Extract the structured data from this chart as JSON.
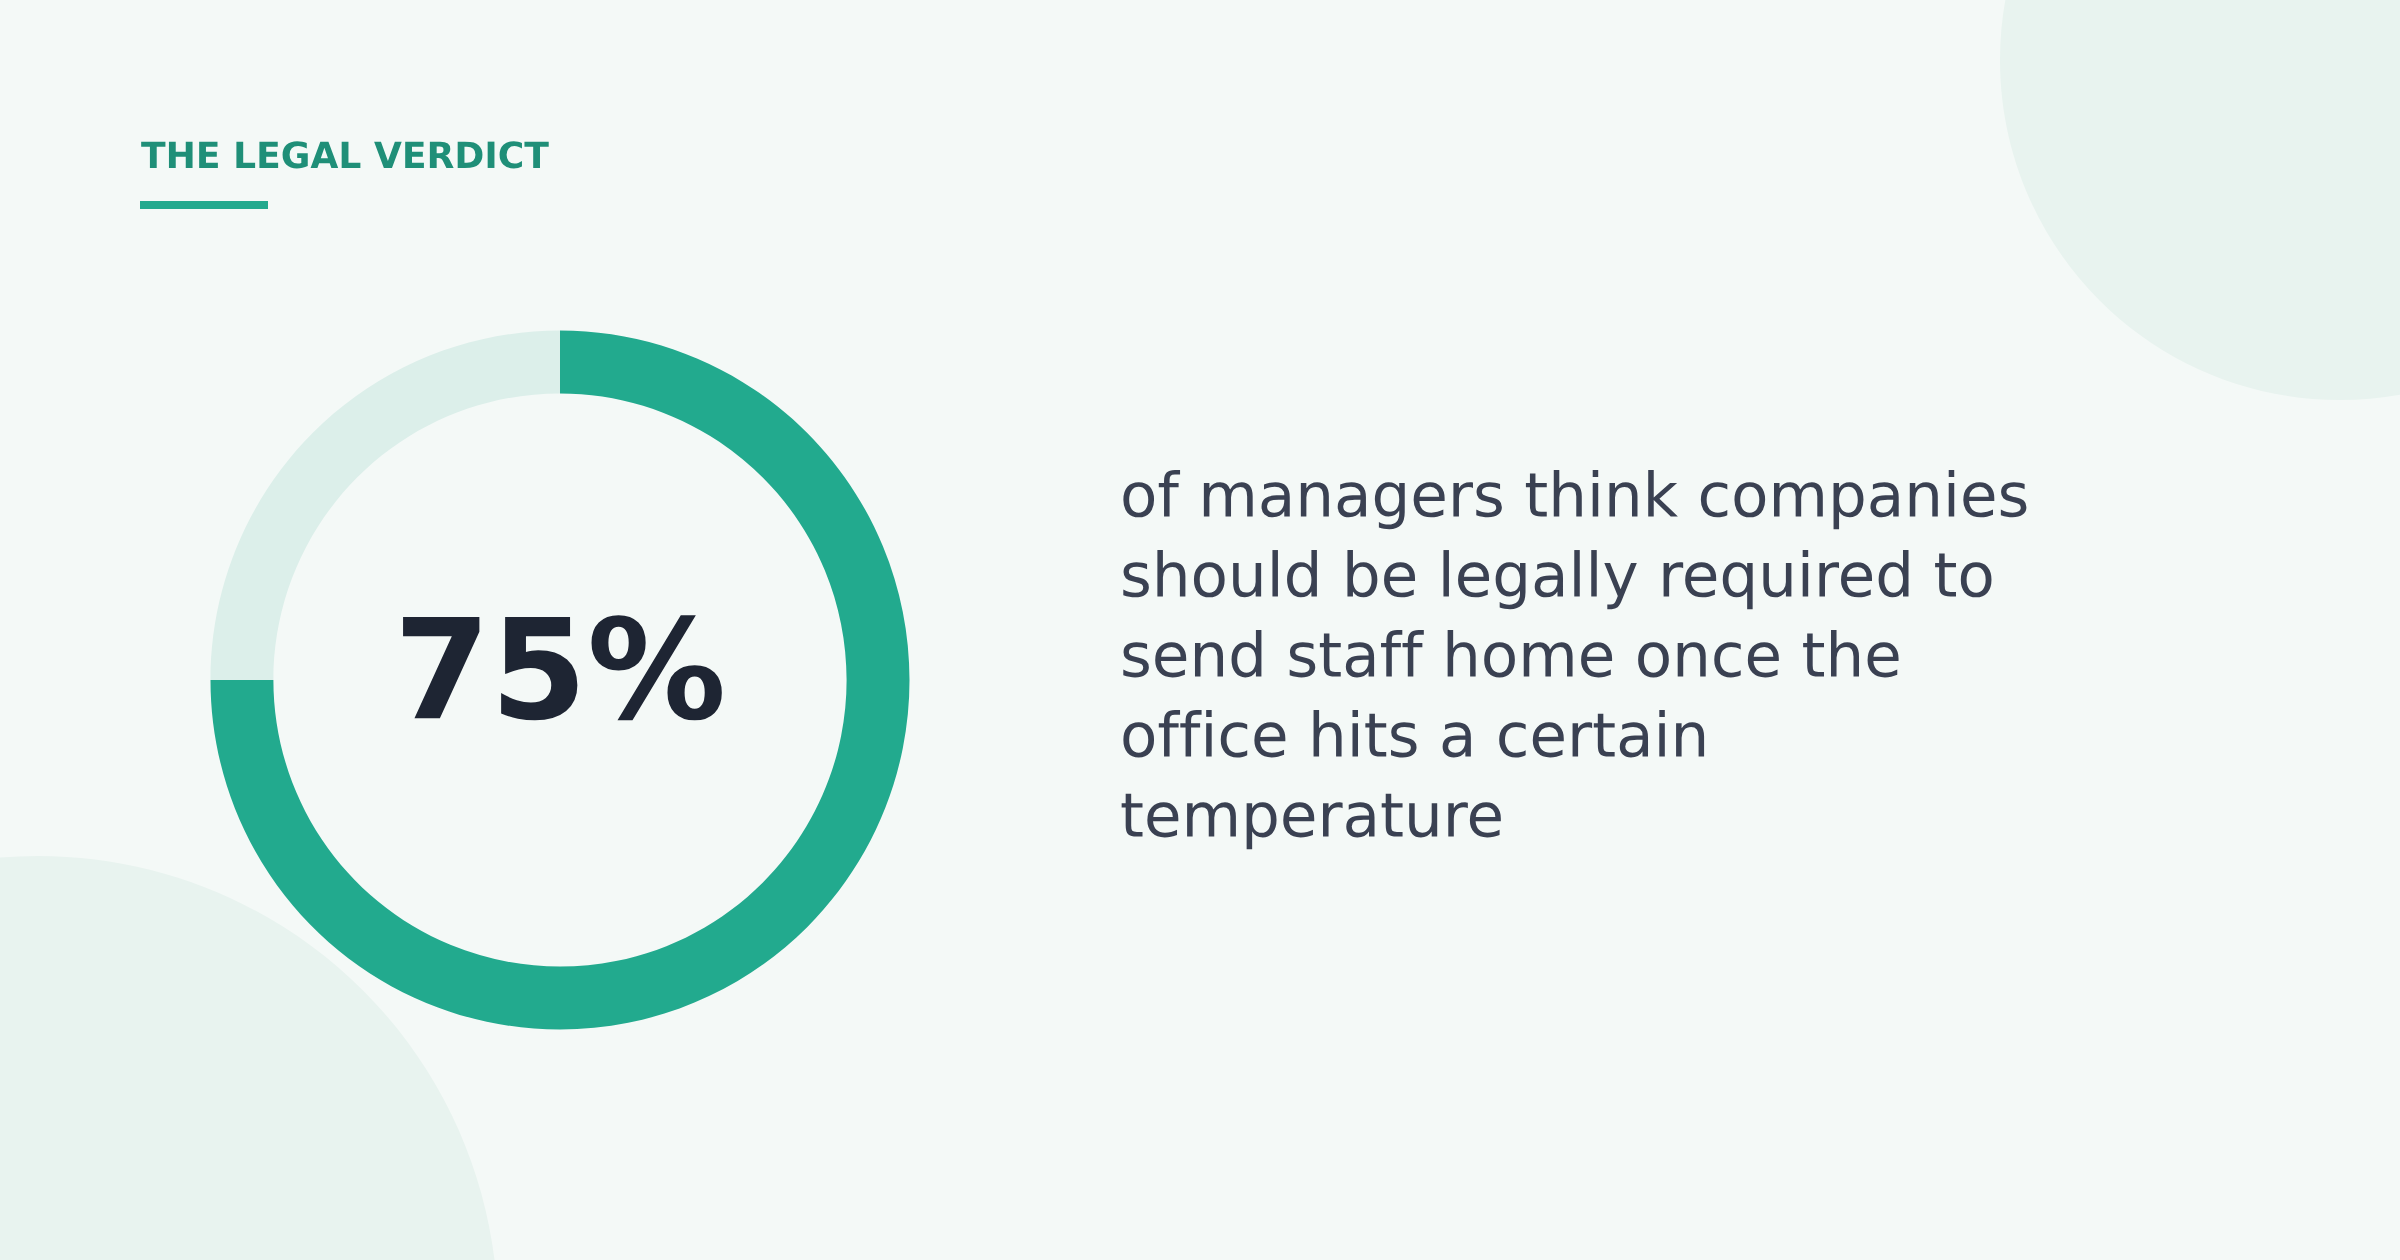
{
  "chart_data": {
    "type": "donut",
    "title": "THE LEGAL VERDICT",
    "categories": [
      null,
      null
    ],
    "values": [
      75,
      25
    ],
    "colors": [
      "#22aa8e",
      "#dcefea"
    ],
    "value_labels": [
      "75%",
      null
    ],
    "annotations": [
      "of managers think companies\nshould be legally required to\nsend staff home once the\noffice hits a certain\ntemperature"
    ],
    "legend": false
  }
}
